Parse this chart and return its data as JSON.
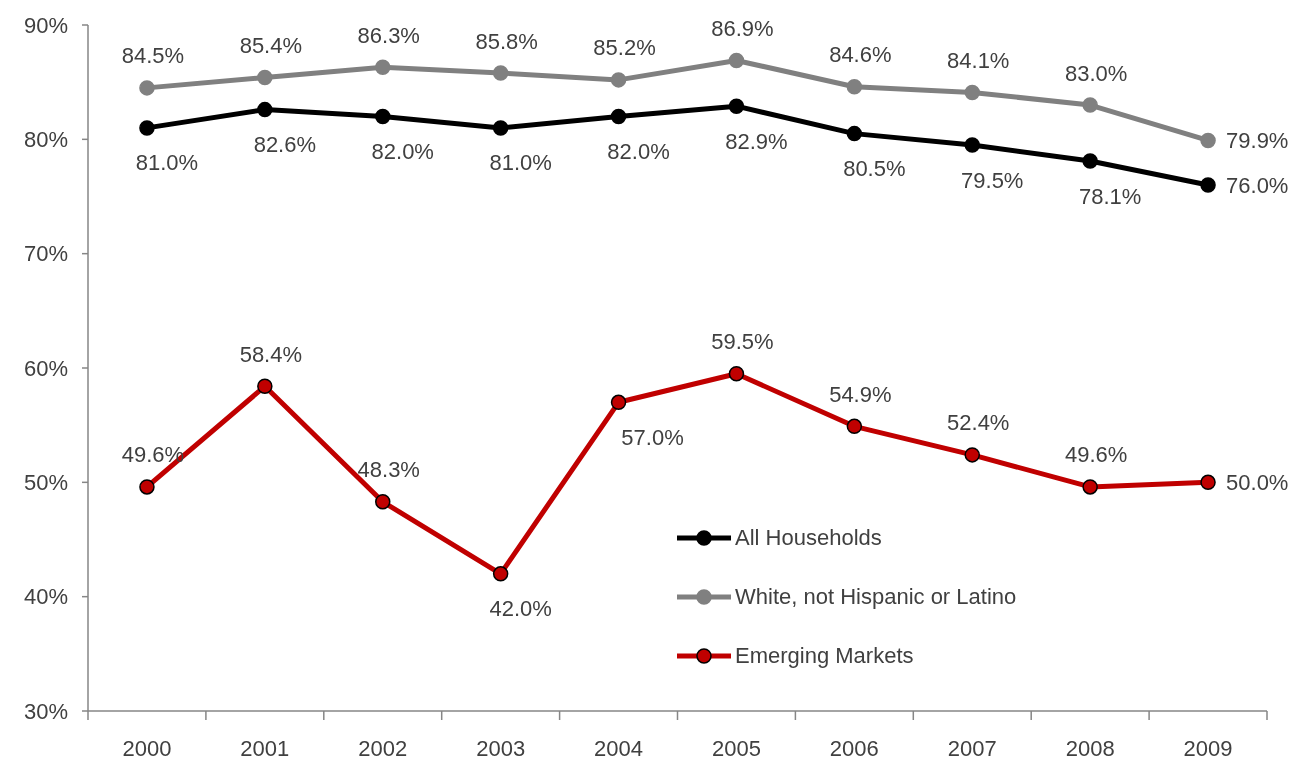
{
  "chart_data": {
    "type": "line",
    "categories": [
      "2000",
      "2001",
      "2002",
      "2003",
      "2004",
      "2005",
      "2006",
      "2007",
      "2008",
      "2009"
    ],
    "ylim": [
      30,
      90
    ],
    "yticks": [
      {
        "value": 30,
        "label": "30%"
      },
      {
        "value": 40,
        "label": "40%"
      },
      {
        "value": 50,
        "label": "50%"
      },
      {
        "value": 60,
        "label": "60%"
      },
      {
        "value": 70,
        "label": "70%"
      },
      {
        "value": 80,
        "label": "80%"
      },
      {
        "value": 90,
        "label": "90%"
      }
    ],
    "grid": false,
    "legend": "bottom right",
    "marker": "circle",
    "line_style": "solid",
    "series": [
      {
        "name": "All Households",
        "color": "#000000",
        "values": [
          81.0,
          82.6,
          82.0,
          81.0,
          82.0,
          82.9,
          80.5,
          79.5,
          78.1,
          76.0
        ],
        "value_labels": [
          "81.0%",
          "82.6%",
          "82.0%",
          "81.0%",
          "82.0%",
          "82.9%",
          "80.5%",
          "79.5%",
          "78.1%",
          "76.0%"
        ]
      },
      {
        "name": "White, not Hispanic or Latino",
        "color": "#808080",
        "values": [
          84.5,
          85.4,
          86.3,
          85.8,
          85.2,
          86.9,
          84.6,
          84.1,
          83.0,
          79.9
        ],
        "value_labels": [
          "84.5%",
          "85.4%",
          "86.3%",
          "85.8%",
          "85.2%",
          "86.9%",
          "84.6%",
          "84.1%",
          "83.0%",
          "79.9%"
        ]
      },
      {
        "name": "Emerging Markets",
        "color": "#c00000",
        "values": [
          49.6,
          58.4,
          48.3,
          42.0,
          57.0,
          59.5,
          54.9,
          52.4,
          49.6,
          50.0
        ],
        "value_labels": [
          "49.6%",
          "58.4%",
          "48.3%",
          "42.0%",
          "57.0%",
          "59.5%",
          "54.9%",
          "52.4%",
          "49.6%",
          "50.0%"
        ]
      }
    ]
  }
}
